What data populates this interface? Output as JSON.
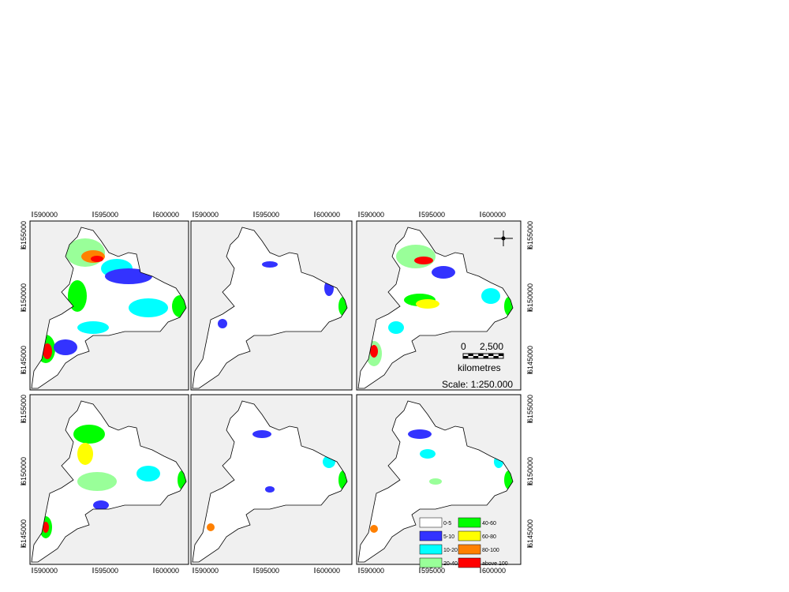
{
  "x_ticks": [
    590000,
    595000,
    600000
  ],
  "y_ticks": [
    6155000,
    6150000,
    6145000
  ],
  "scale_bar": {
    "start": "0",
    "end": "2,500",
    "unit": "kilometres"
  },
  "scale": "Scale: 1:250.000",
  "legend": [
    {
      "label": "0-5",
      "color": "#ffffff"
    },
    {
      "label": "5-10",
      "color": "#3333ff"
    },
    {
      "label": "10-20",
      "color": "#00ffff"
    },
    {
      "label": "20-40",
      "color": "#99ff99"
    },
    {
      "label": "40-60",
      "color": "#00ff00"
    },
    {
      "label": "60-80",
      "color": "#ffff00"
    },
    {
      "label": "80-100",
      "color": "#ff8000"
    },
    {
      "label": "above 100",
      "color": "#ff0000"
    }
  ]
}
